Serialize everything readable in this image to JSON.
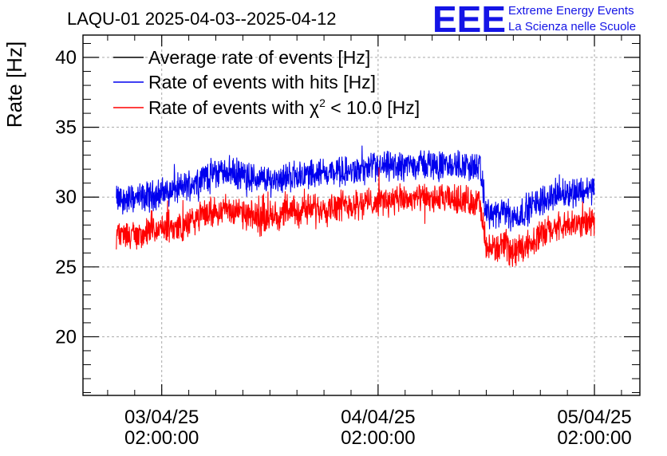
{
  "chart_data": {
    "type": "line",
    "title": "LAQU-01 2025-04-03--2025-04-12",
    "xlabel": "",
    "ylabel": "Rate [Hz]",
    "ylim": [
      15.8,
      41.6
    ],
    "yticks": [
      20,
      25,
      30,
      35,
      40
    ],
    "xticks": [
      {
        "x": 1,
        "line1": "03/04/25",
        "line2": "02:00:00"
      },
      {
        "x": 2,
        "line1": "04/04/25",
        "line2": "02:00:00"
      },
      {
        "x": 3,
        "line1": "05/04/25",
        "line2": "02:00:00"
      }
    ],
    "xlim": [
      0.636,
      3.21
    ],
    "grid": true,
    "legend_position": "top-left",
    "series": [
      {
        "name": "Average rate of events [Hz]",
        "color": "#000000",
        "x": [],
        "y": []
      },
      {
        "name": "Rate of events with hits [Hz]",
        "color": "#0000ee",
        "x": [
          0.79,
          0.9,
          1.0,
          1.1,
          1.2,
          1.3,
          1.4,
          1.5,
          1.6,
          1.7,
          1.8,
          1.9,
          2.0,
          2.1,
          2.2,
          2.3,
          2.38,
          2.47,
          2.5,
          2.55,
          2.6,
          2.62,
          2.7,
          2.8,
          2.9,
          3.0
        ],
        "y": [
          29.8,
          29.9,
          30.3,
          30.7,
          31.5,
          31.9,
          31.4,
          31.2,
          31.5,
          31.7,
          31.8,
          31.8,
          32.1,
          32.2,
          32.4,
          32.2,
          32.3,
          32.1,
          28.9,
          28.7,
          29.0,
          28.4,
          29.3,
          30.1,
          30.4,
          30.6
        ]
      },
      {
        "name": "Rate of events with χ² < 10.0 [Hz]",
        "color": "#ff0000",
        "x": [
          0.79,
          0.9,
          1.0,
          1.1,
          1.2,
          1.3,
          1.4,
          1.5,
          1.6,
          1.7,
          1.8,
          1.9,
          2.0,
          2.1,
          2.2,
          2.3,
          2.38,
          2.47,
          2.5,
          2.55,
          2.6,
          2.62,
          2.7,
          2.8,
          2.9,
          3.0
        ],
        "y": [
          27.3,
          27.3,
          27.7,
          27.9,
          28.8,
          29.2,
          28.6,
          28.6,
          28.9,
          29.2,
          29.4,
          29.5,
          29.7,
          29.8,
          29.9,
          29.8,
          29.8,
          29.6,
          26.2,
          26.4,
          26.5,
          26.0,
          26.8,
          27.7,
          28.0,
          28.3
        ]
      }
    ]
  },
  "legend": {
    "avg": "Average rate of events [Hz]",
    "hits": "Rate of events with hits [Hz]",
    "chi_prefix": "Rate of events with ",
    "chi_symbol": "χ",
    "chi_exp": "2",
    "chi_suffix": " < 10.0 [Hz]"
  },
  "logo": {
    "letters": "EEE",
    "line1": "Extreme Energy Events",
    "line2": "La Scienza nelle Scuole"
  }
}
